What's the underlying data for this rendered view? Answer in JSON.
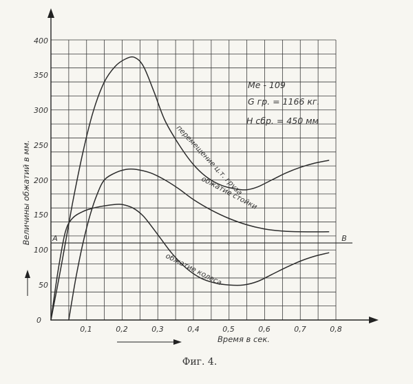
{
  "chart_data": {
    "type": "line",
    "xlabel": "Время в сек.",
    "ylabel": "Величины обжатий в мм.",
    "xlim": [
      0,
      0.8
    ],
    "ylim": [
      0,
      400
    ],
    "x_ticks": [
      "0,1",
      "0,2",
      "0,3",
      "0,4",
      "0,5",
      "0,6",
      "0,7",
      "0,8"
    ],
    "y_ticks": [
      "0",
      "50",
      "100",
      "150",
      "200",
      "250",
      "300",
      "350",
      "400"
    ],
    "grid": true,
    "annotations": {
      "model": "Me - 109",
      "weight": "G гр. = 1166 кг.",
      "drop_height": "Н сбр. = 450 мм",
      "line_label_left": "А",
      "line_label_right": "В"
    },
    "reference_line": {
      "y": 110
    },
    "series": [
      {
        "name": "перемещение ц.т. груза",
        "x": [
          0,
          0.03,
          0.06,
          0.09,
          0.12,
          0.15,
          0.18,
          0.21,
          0.235,
          0.26,
          0.29,
          0.32,
          0.36,
          0.4,
          0.44,
          0.48,
          0.52,
          0.55,
          0.58,
          0.62,
          0.66,
          0.7,
          0.74,
          0.78
        ],
        "y": [
          0,
          80,
          165,
          240,
          300,
          340,
          362,
          373,
          375,
          362,
          325,
          285,
          250,
          222,
          203,
          192,
          187,
          186,
          190,
          200,
          210,
          218,
          224,
          228
        ]
      },
      {
        "name": "обжатие стойки",
        "x": [
          0.05,
          0.07,
          0.09,
          0.11,
          0.13,
          0.15,
          0.18,
          0.21,
          0.24,
          0.28,
          0.32,
          0.36,
          0.4,
          0.45,
          0.5,
          0.55,
          0.6,
          0.65,
          0.7,
          0.78
        ],
        "y": [
          0,
          60,
          110,
          150,
          180,
          200,
          210,
          215,
          215,
          210,
          200,
          187,
          172,
          157,
          145,
          136,
          130,
          127,
          126,
          126
        ]
      },
      {
        "name": "обжатие колеса",
        "x": [
          0,
          0.02,
          0.04,
          0.06,
          0.09,
          0.12,
          0.15,
          0.18,
          0.2,
          0.23,
          0.26,
          0.3,
          0.34,
          0.38,
          0.42,
          0.46,
          0.5,
          0.54,
          0.58,
          0.62,
          0.66,
          0.7,
          0.74,
          0.78
        ],
        "y": [
          0,
          70,
          125,
          145,
          155,
          160,
          163,
          165,
          165,
          160,
          148,
          122,
          95,
          74,
          60,
          53,
          50,
          50,
          55,
          65,
          75,
          84,
          91,
          96
        ]
      }
    ],
    "caption": "Фиг. 4."
  }
}
